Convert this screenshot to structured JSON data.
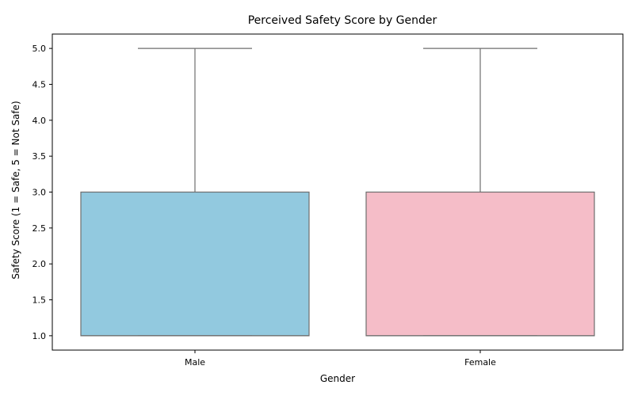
{
  "chart_data": {
    "type": "box",
    "title": "Perceived Safety Score by Gender",
    "xlabel": "Gender",
    "ylabel": "Safety Score (1 = Safe, 5 = Not Safe)",
    "categories": [
      "Male",
      "Female"
    ],
    "ylim": [
      0.8,
      5.2
    ],
    "yticks": [
      "1.0",
      "1.5",
      "2.0",
      "2.5",
      "3.0",
      "3.5",
      "4.0",
      "4.5",
      "5.0"
    ],
    "grid": false,
    "legend": "none",
    "boxes": [
      {
        "category": "Male",
        "min": 1,
        "q1": 1,
        "median": 1,
        "q3": 3,
        "max": 5,
        "color": "#92c9df"
      },
      {
        "category": "Female",
        "min": 1,
        "q1": 1,
        "median": 1,
        "q3": 3,
        "max": 5,
        "color": "#f5bdc8"
      }
    ],
    "line_color": "#6e6e6e"
  }
}
